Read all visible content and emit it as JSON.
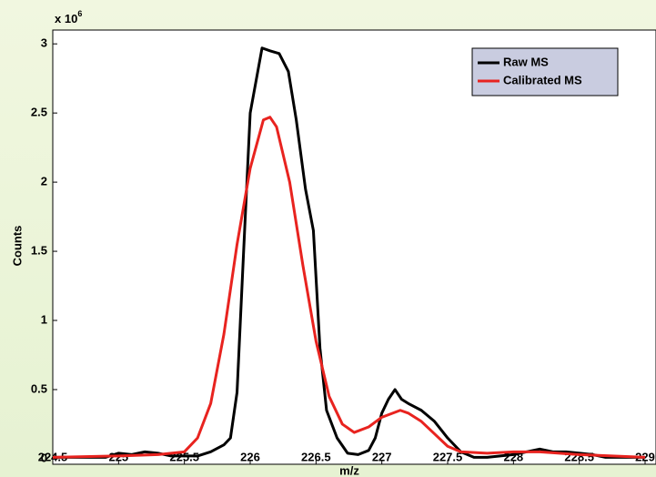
{
  "chart_data": {
    "type": "line",
    "x_label": "m/z",
    "y_label": "Counts",
    "y_multiplier": {
      "base": "x 10",
      "exponent": "6"
    },
    "xlim": [
      224.5,
      229
    ],
    "xticks": [
      224.5,
      225,
      225.5,
      226,
      226.5,
      227,
      227.5,
      228,
      228.5,
      229
    ],
    "ylim": [
      -0.04,
      3.1
    ],
    "yticks": [
      0,
      0.5,
      1,
      1.5,
      2,
      2.5,
      3
    ],
    "legend": "upper right",
    "series": [
      {
        "name": "Raw MS",
        "color": "#000000",
        "x": [
          224.5,
          224.9,
          225.0,
          225.1,
          225.2,
          225.3,
          225.4,
          225.6,
          225.7,
          225.8,
          225.85,
          225.9,
          225.95,
          226.0,
          226.09,
          226.15,
          226.22,
          226.29,
          226.35,
          226.42,
          226.48,
          226.53,
          226.58,
          226.66,
          226.74,
          226.82,
          226.9,
          226.95,
          227.0,
          227.05,
          227.1,
          227.15,
          227.2,
          227.3,
          227.4,
          227.5,
          227.6,
          227.7,
          227.8,
          227.9,
          228.0,
          228.2,
          228.3,
          228.4,
          228.6,
          228.7,
          229.0
        ],
        "values": [
          0.01,
          0.01,
          0.04,
          0.03,
          0.05,
          0.04,
          0.02,
          0.02,
          0.05,
          0.1,
          0.15,
          0.48,
          1.5,
          2.5,
          2.97,
          2.95,
          2.93,
          2.8,
          2.45,
          1.95,
          1.65,
          0.8,
          0.35,
          0.15,
          0.04,
          0.03,
          0.06,
          0.15,
          0.33,
          0.43,
          0.5,
          0.43,
          0.4,
          0.35,
          0.27,
          0.15,
          0.05,
          0.01,
          0.01,
          0.02,
          0.03,
          0.07,
          0.05,
          0.05,
          0.03,
          0.01,
          0.01
        ]
      },
      {
        "name": "Calibrated MS",
        "color": "#e8231f",
        "x": [
          224.5,
          225.0,
          225.3,
          225.5,
          225.6,
          225.7,
          225.8,
          225.9,
          226.0,
          226.1,
          226.15,
          226.2,
          226.3,
          226.4,
          226.5,
          226.6,
          226.7,
          226.79,
          226.9,
          227.0,
          227.14,
          227.2,
          227.3,
          227.4,
          227.5,
          227.6,
          227.8,
          228.0,
          228.2,
          228.5,
          229.0
        ],
        "values": [
          0.01,
          0.02,
          0.03,
          0.05,
          0.15,
          0.4,
          0.9,
          1.55,
          2.1,
          2.45,
          2.47,
          2.4,
          2.0,
          1.4,
          0.85,
          0.45,
          0.25,
          0.19,
          0.23,
          0.3,
          0.35,
          0.33,
          0.27,
          0.18,
          0.09,
          0.05,
          0.04,
          0.05,
          0.05,
          0.03,
          0.01
        ]
      }
    ]
  }
}
